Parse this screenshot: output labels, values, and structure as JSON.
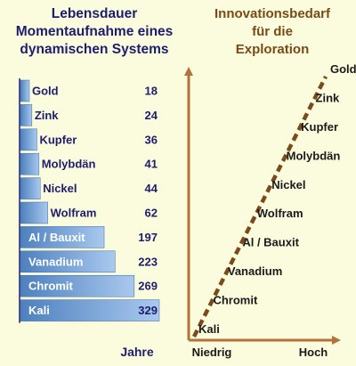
{
  "left_title": {
    "line1": "Lebensdauer",
    "line2": "Momentaufnahme eines",
    "line3": "dynamischen Systems"
  },
  "right_title": {
    "line1": "Innovationsbedarf",
    "line2": "für die",
    "line3": "Exploration"
  },
  "colors": {
    "background": "#fbfbdd",
    "bar": "#5e8fc9",
    "bar_light": "#a9c9ef",
    "left_text": "#1d1d6e",
    "right_title": "#7a4a1a",
    "axis": "#b5713a",
    "dashed_line": "#7a4a1a"
  },
  "chart_data": [
    {
      "type": "bar",
      "orientation": "horizontal",
      "title": "Lebensdauer Momentaufnahme eines dynamischen Systems",
      "xlabel": "Jahre",
      "categories": [
        "Gold",
        "Zink",
        "Kupfer",
        "Molybdän",
        "Nickel",
        "Wolfram",
        "Al / Bauxit",
        "Vanadium",
        "Chromit",
        "Kali"
      ],
      "values": [
        18,
        24,
        36,
        41,
        44,
        62,
        197,
        223,
        269,
        329
      ],
      "grid": false
    },
    {
      "type": "line",
      "title": "Innovationsbedarf für die Exploration",
      "xlabel_ticks": [
        "Niedrig",
        "Hoch"
      ],
      "categories": [
        "Kali",
        "Chromit",
        "Vanadium",
        "Al / Bauxit",
        "Wolfram",
        "Nickel",
        "Molybdän",
        "Kupfer",
        "Zink",
        "Gold"
      ],
      "line_style": "dashed",
      "grid": false
    }
  ]
}
